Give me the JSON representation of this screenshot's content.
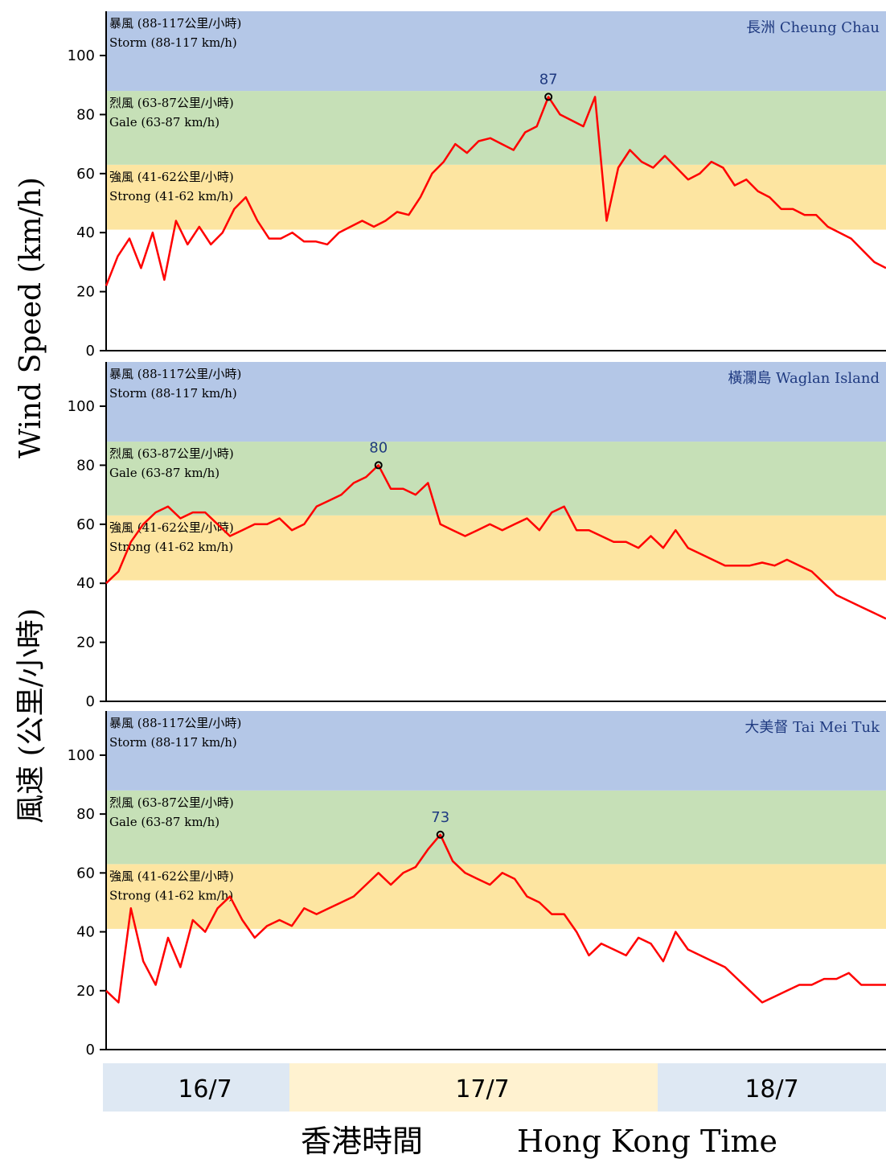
{
  "chart_data": [
    {
      "type": "line",
      "station": "長洲 Cheung Chau",
      "ylim": [
        0,
        115
      ],
      "yticks": [
        "0",
        "20",
        "40",
        "60",
        "80",
        "100"
      ],
      "bands": [
        {
          "key": "strong",
          "zh": "強風 (41-62公里/小時)",
          "en": "Strong (41-62 km/h)",
          "range": [
            41,
            63
          ],
          "color": "#fde5a1"
        },
        {
          "key": "gale",
          "zh": "烈風 (63-87公里/小時)",
          "en": "Gale (63-87 km/h)",
          "range": [
            63,
            88
          ],
          "color": "#c6e0b7"
        },
        {
          "key": "storm",
          "zh": "暴風 (88-117公里/小時)",
          "en": "Storm (88-117 km/h)",
          "range": [
            88,
            115
          ],
          "color": "#b4c7e7"
        }
      ],
      "peak_label": "87",
      "peak_index": 38,
      "series": [
        {
          "color": "#ff0000",
          "values": [
            22,
            32,
            38,
            28,
            40,
            24,
            44,
            36,
            42,
            36,
            40,
            48,
            52,
            44,
            38,
            38,
            40,
            37,
            37,
            36,
            40,
            42,
            44,
            42,
            44,
            47,
            46,
            52,
            60,
            64,
            70,
            67,
            71,
            72,
            70,
            68,
            74,
            76,
            86,
            80,
            78,
            76,
            86,
            44,
            62,
            68,
            64,
            62,
            66,
            62,
            58,
            60,
            64,
            62,
            56,
            58,
            54,
            52,
            48,
            48,
            46,
            46,
            42,
            40,
            38,
            34,
            30,
            28
          ]
        }
      ]
    },
    {
      "type": "line",
      "station": "橫瀾島 Waglan Island",
      "ylim": [
        0,
        115
      ],
      "yticks": [
        "0",
        "20",
        "40",
        "60",
        "80",
        "100"
      ],
      "bands": [
        {
          "key": "strong",
          "zh": "強風 (41-62公里/小時)",
          "en": "Strong (41-62 km/h)",
          "range": [
            41,
            63
          ],
          "color": "#fde5a1"
        },
        {
          "key": "gale",
          "zh": "烈風 (63-87公里/小時)",
          "en": "Gale (63-87 km/h)",
          "range": [
            63,
            88
          ],
          "color": "#c6e0b7"
        },
        {
          "key": "storm",
          "zh": "暴風 (88-117公里/小時)",
          "en": "Storm (88-117 km/h)",
          "range": [
            88,
            115
          ],
          "color": "#b4c7e7"
        }
      ],
      "peak_label": "80",
      "peak_index": 22,
      "series": [
        {
          "color": "#ff0000",
          "values": [
            40,
            44,
            54,
            60,
            64,
            66,
            62,
            64,
            64,
            60,
            56,
            58,
            60,
            60,
            62,
            58,
            60,
            66,
            68,
            70,
            74,
            76,
            80,
            72,
            72,
            70,
            74,
            60,
            58,
            56,
            58,
            60,
            58,
            60,
            62,
            58,
            64,
            66,
            58,
            58,
            56,
            54,
            54,
            52,
            56,
            52,
            58,
            52,
            50,
            48,
            46,
            46,
            46,
            47,
            46,
            48,
            46,
            44,
            40,
            36,
            34,
            32,
            30,
            28
          ]
        }
      ]
    },
    {
      "type": "line",
      "station": "大美督 Tai Mei Tuk",
      "ylim": [
        0,
        115
      ],
      "yticks": [
        "0",
        "20",
        "40",
        "60",
        "80",
        "100"
      ],
      "bands": [
        {
          "key": "strong",
          "zh": "強風 (41-62公里/小時)",
          "en": "Strong (41-62 km/h)",
          "range": [
            41,
            63
          ],
          "color": "#fde5a1"
        },
        {
          "key": "gale",
          "zh": "烈風 (63-87公里/小時)",
          "en": "Gale (63-87 km/h)",
          "range": [
            63,
            88
          ],
          "color": "#c6e0b7"
        },
        {
          "key": "storm",
          "zh": "暴風 (88-117公里/小時)",
          "en": "Storm (88-117 km/h)",
          "range": [
            88,
            115
          ],
          "color": "#b4c7e7"
        }
      ],
      "peak_label": "73",
      "peak_index": 27,
      "series": [
        {
          "color": "#ff0000",
          "values": [
            20,
            16,
            48,
            30,
            22,
            38,
            28,
            44,
            40,
            48,
            52,
            44,
            38,
            42,
            44,
            42,
            48,
            46,
            48,
            50,
            52,
            56,
            60,
            56,
            60,
            62,
            68,
            73,
            64,
            60,
            58,
            56,
            60,
            58,
            52,
            50,
            46,
            46,
            40,
            32,
            36,
            34,
            32,
            38,
            36,
            30,
            40,
            34,
            32,
            30,
            28,
            24,
            20,
            16,
            18,
            20,
            22,
            22,
            24,
            24,
            26,
            22,
            22,
            22
          ]
        }
      ]
    }
  ],
  "y_axis_title": {
    "en": "Wind Speed (km/h)",
    "zh": "風速 (公里/小時)"
  },
  "date_bar": [
    {
      "label": "16/7",
      "color": "#dee8f3"
    },
    {
      "label": "17/7",
      "color": "#fff2d0"
    },
    {
      "label": "18/7",
      "color": "#dee8f3"
    }
  ],
  "x_axis_title": {
    "zh": "香港時間",
    "en": "Hong Kong Time"
  }
}
